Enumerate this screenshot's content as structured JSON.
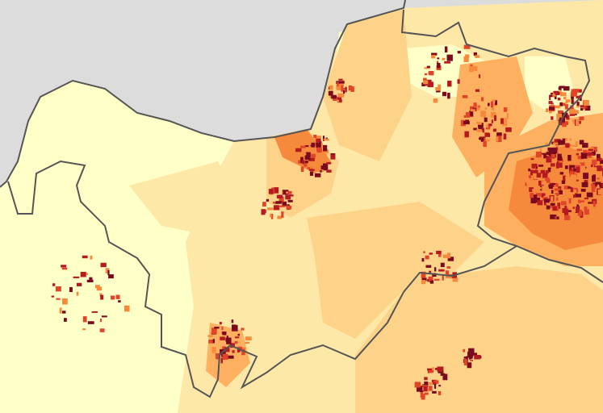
{
  "map": {
    "type": "choropleth",
    "colors": {
      "sea": "#dcdcdc",
      "class_1": "#ffffc8",
      "class_2": "#fee8a8",
      "class_3": "#fdd38a",
      "class_4": "#fdb060",
      "class_5": "#f68a3c",
      "class_6": "#e0452a",
      "class_7": "#b51a20",
      "class_8": "#7a0a1e",
      "border": "#555555"
    }
  }
}
